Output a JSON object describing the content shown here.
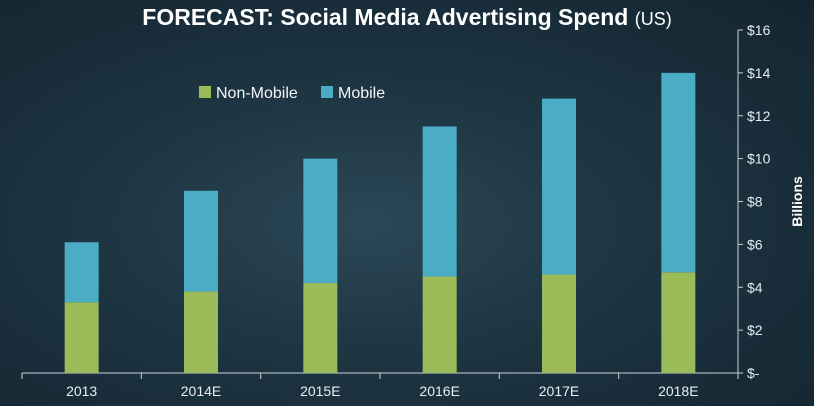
{
  "chart_data": {
    "type": "bar",
    "stacked": true,
    "title": "FORECAST: Social Media Advertising Spend",
    "subtitle": "(US)",
    "xlabel": "",
    "ylabel": "Billions",
    "categories": [
      "2013",
      "2014E",
      "2015E",
      "2016E",
      "2017E",
      "2018E"
    ],
    "series": [
      {
        "name": "Non-Mobile",
        "color": "#9bbb59",
        "values": [
          3.3,
          3.8,
          4.2,
          4.5,
          4.6,
          4.7
        ]
      },
      {
        "name": "Mobile",
        "color": "#4bacc6",
        "values": [
          2.8,
          4.7,
          5.8,
          7.0,
          8.2,
          9.3
        ]
      }
    ],
    "ylim": [
      0,
      16
    ],
    "yticks": [
      0,
      2,
      4,
      6,
      8,
      10,
      12,
      14,
      16
    ],
    "ytick_labels": [
      "$-",
      "$2",
      "$4",
      "$6",
      "$8",
      "$10",
      "$12",
      "$14",
      "$16"
    ],
    "y_axis_side": "right",
    "legend_position": "top-left",
    "grid": false
  }
}
